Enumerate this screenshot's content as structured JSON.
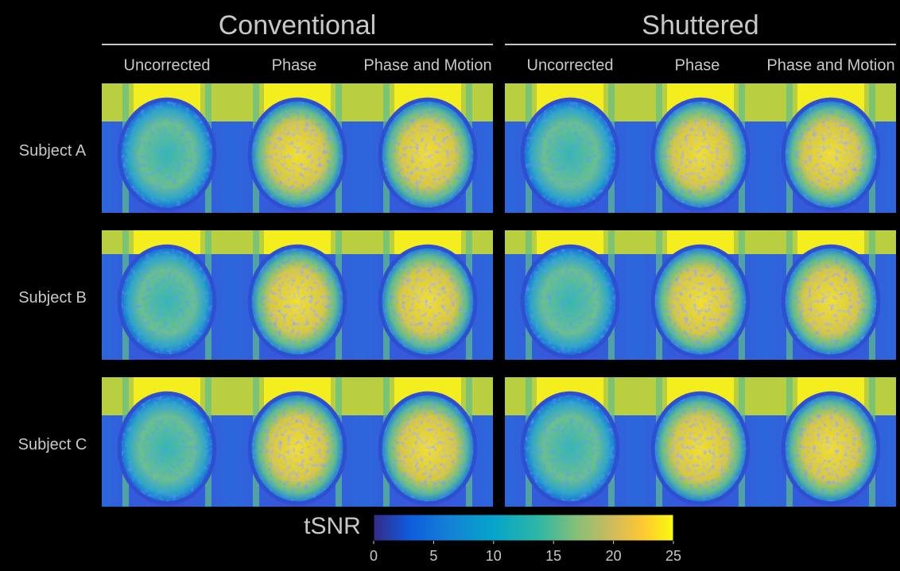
{
  "groups": [
    {
      "title": "Conventional",
      "columns": [
        "Uncorrected",
        "Phase",
        "Phase and Motion"
      ]
    },
    {
      "title": "Shuttered",
      "columns": [
        "Uncorrected",
        "Phase",
        "Phase and Motion"
      ]
    }
  ],
  "rows": [
    "Subject A",
    "Subject B",
    "Subject C"
  ],
  "colorbar": {
    "label": "tSNR",
    "lim": [
      0,
      25
    ],
    "ticks": [
      0,
      5,
      10,
      15,
      20,
      25
    ]
  }
}
